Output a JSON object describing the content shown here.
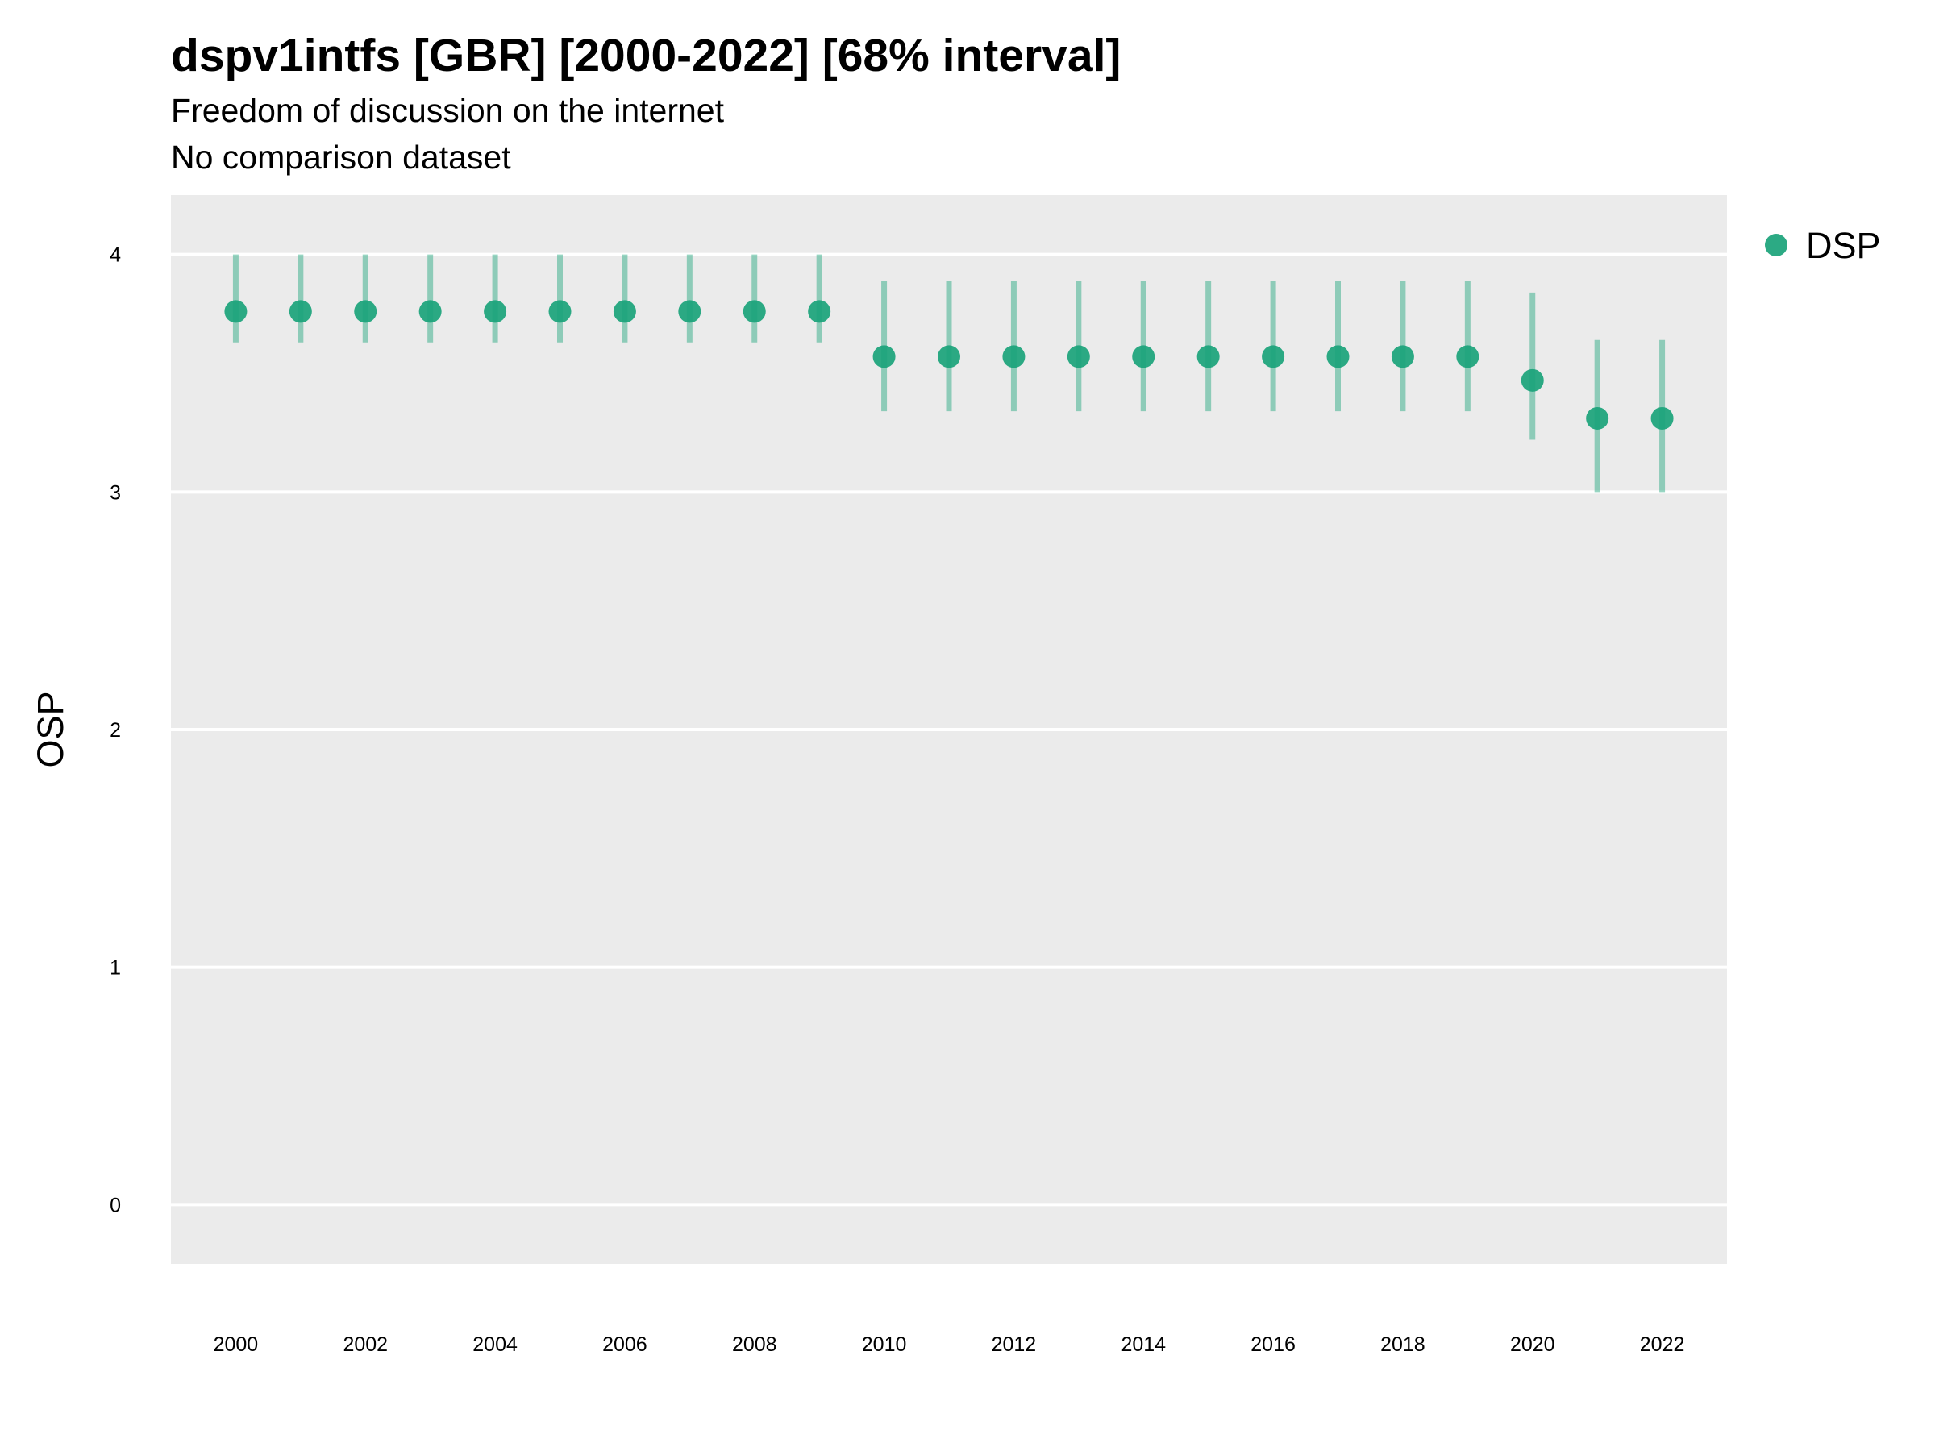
{
  "chart_data": {
    "type": "scatter",
    "title": "dspv1intfs [GBR] [2000-2022] [68% interval]",
    "subtitle": "Freedom of discussion on the internet",
    "subtitle2": "No comparison dataset",
    "xlabel": "",
    "ylabel": "OSP",
    "x_ticks": [
      "2000",
      "2002",
      "2004",
      "2006",
      "2008",
      "2010",
      "2012",
      "2014",
      "2016",
      "2018",
      "2020",
      "2022"
    ],
    "y_ticks": [
      "0",
      "1",
      "2",
      "3",
      "4"
    ],
    "xlim": [
      1999,
      2023
    ],
    "ylim": [
      -0.25,
      4.25
    ],
    "grid": true,
    "legend_position": "right",
    "series": [
      {
        "name": "DSP",
        "color": "#1aa37a",
        "x": [
          2000,
          2001,
          2002,
          2003,
          2004,
          2005,
          2006,
          2007,
          2008,
          2009,
          2010,
          2011,
          2012,
          2013,
          2014,
          2015,
          2016,
          2017,
          2018,
          2019,
          2020,
          2021,
          2022
        ],
        "y": [
          3.76,
          3.76,
          3.76,
          3.76,
          3.76,
          3.76,
          3.76,
          3.76,
          3.76,
          3.76,
          3.57,
          3.57,
          3.57,
          3.57,
          3.57,
          3.57,
          3.57,
          3.57,
          3.57,
          3.57,
          3.47,
          3.31,
          3.31
        ],
        "lower": [
          3.63,
          3.63,
          3.63,
          3.63,
          3.63,
          3.63,
          3.63,
          3.63,
          3.63,
          3.63,
          3.34,
          3.34,
          3.34,
          3.34,
          3.34,
          3.34,
          3.34,
          3.34,
          3.34,
          3.34,
          3.22,
          3.0,
          3.0
        ],
        "upper": [
          4.0,
          4.0,
          4.0,
          4.0,
          4.0,
          4.0,
          4.0,
          4.0,
          4.0,
          4.0,
          3.89,
          3.89,
          3.89,
          3.89,
          3.89,
          3.89,
          3.89,
          3.89,
          3.89,
          3.89,
          3.84,
          3.64,
          3.64
        ]
      }
    ]
  }
}
